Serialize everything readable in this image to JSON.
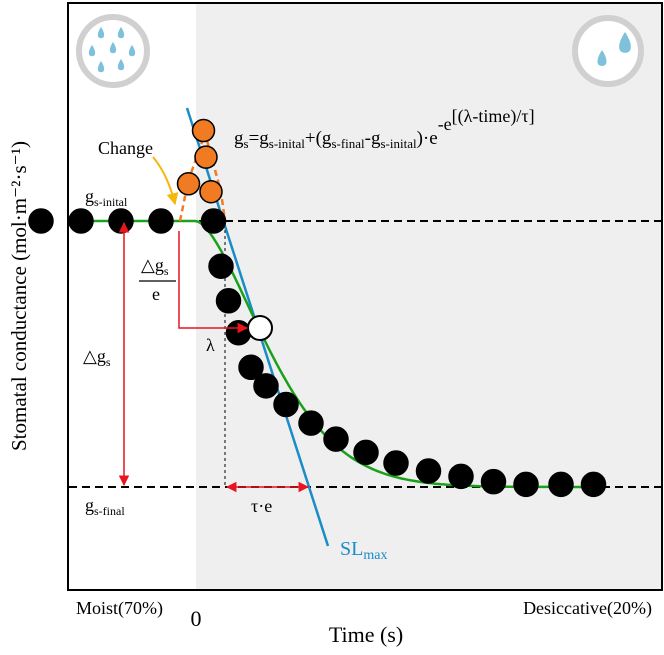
{
  "chart_data": {
    "type": "scatter",
    "title": "",
    "xlabel": "Time (s)",
    "ylabel": "Stomatal conductance (mol·m⁻²·s⁻¹)",
    "x_tick_labels": {
      "left": "Moist(70%)",
      "zero": "0",
      "right": "Desiccative(20%)"
    },
    "y_levels": {
      "g_initial": 1.0,
      "g_final": 0.0
    },
    "phases": [
      "moist",
      "desiccative"
    ],
    "series": [
      {
        "kind": "points-black",
        "x": [
          -3.1,
          -2.3,
          -1.5,
          -0.7,
          0.35,
          0.5,
          0.65,
          0.85,
          1.1,
          1.4,
          1.8,
          2.3,
          2.8,
          3.4,
          4.0,
          4.65,
          5.3,
          5.95,
          6.6,
          7.3,
          7.95
        ],
        "y": [
          1.0,
          1.0,
          1.0,
          1.0,
          1.0,
          0.83,
          0.7,
          0.58,
          0.45,
          0.38,
          0.31,
          0.24,
          0.18,
          0.13,
          0.09,
          0.06,
          0.04,
          0.02,
          0.01,
          0.01,
          0.01
        ]
      },
      {
        "kind": "points-orange",
        "x": [
          -0.15,
          0.15,
          0.2,
          0.3
        ],
        "y": [
          1.14,
          1.34,
          1.24,
          1.11
        ]
      },
      {
        "kind": "point-white",
        "x": [
          0.8
        ],
        "y": [
          0.52
        ]
      }
    ],
    "labels": {
      "change": "Change",
      "gs_initial": "g",
      "gs_initial_sub": "s-inital",
      "gs_final": "g",
      "gs_final_sub": "s-final",
      "delta_gs": "△g",
      "delta_gs_sub": "s",
      "delta_gs_frac_top": "△g",
      "delta_gs_frac_top_sub": "s",
      "delta_gs_frac_bottom": "e",
      "lambda": "λ",
      "tau_e": "τ·e",
      "sl_max": "SL",
      "sl_max_sub": "max"
    },
    "formula": {
      "lhs": "g",
      "lhs_sub": "s",
      "part1": "=g",
      "part1_sub": "s-inital",
      "part2": "+(g",
      "part2_sub": "s-final",
      "part3": "-g",
      "part3_sub": "s-inital",
      "part4": ")·e",
      "exp": "-e",
      "exp2": "[(λ-time)/τ]"
    },
    "colors": {
      "points": "#000000",
      "change_points": "#F07B22",
      "fit_curve": "#1AA11A",
      "slope_line": "#1A8CC8",
      "arrows": "#E8141E",
      "change_arrow": "#F5B80A",
      "drought_panel": "#EFEFEF",
      "icon_ring": "#D0D0D0",
      "drops": "#7EC1DA"
    },
    "icons": [
      "rain-heavy-icon",
      "rain-light-icon"
    ]
  }
}
